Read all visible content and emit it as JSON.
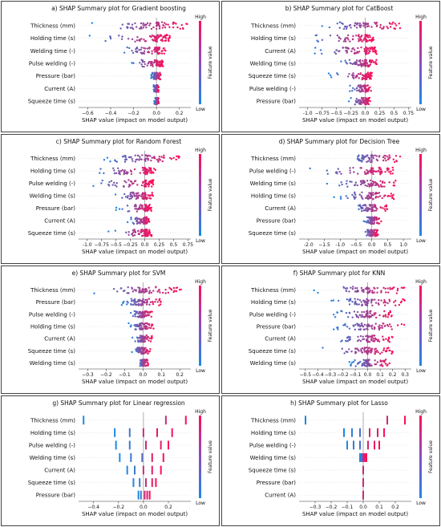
{
  "colorbar": {
    "high": "High",
    "low": "Low",
    "label": "Feature value"
  },
  "colors": {
    "low": "#1e88e5",
    "high": "#ff0d57",
    "zero_line": "#999999"
  },
  "chart_data": [
    {
      "type": "scatter",
      "subtype": "shap-beeswarm",
      "title": "a) SHAP Summary plot for Gradient boosting",
      "xlabel": "SHAP value (impact on model output)",
      "xlim": [
        -0.68,
        0.3
      ],
      "xticks": [
        -0.6,
        -0.4,
        -0.2,
        0.0,
        0.2
      ],
      "features": [
        {
          "name": "Thickness (mm)",
          "min": -0.57,
          "max": 0.27
        },
        {
          "name": "Holding time (s)",
          "min": -0.6,
          "max": 0.12
        },
        {
          "name": "Welding time (-)",
          "min": -0.33,
          "max": 0.08
        },
        {
          "name": "Pulse welding (-)",
          "min": -0.25,
          "max": 0.06
        },
        {
          "name": "Pressure (bar)",
          "min": -0.05,
          "max": 0.04
        },
        {
          "name": "Current (A)",
          "min": -0.03,
          "max": 0.02
        },
        {
          "name": "Squeeze time (s)",
          "min": -0.02,
          "max": 0.02
        }
      ]
    },
    {
      "type": "scatter",
      "subtype": "shap-beeswarm",
      "title": "b) SHAP Summary plot for CatBoost",
      "xlabel": "SHAP value (impact on model output)",
      "xlim": [
        -1.15,
        0.8
      ],
      "xticks": [
        -1.0,
        -0.75,
        -0.5,
        -0.25,
        0.0,
        0.25,
        0.5,
        0.75
      ],
      "features": [
        {
          "name": "Thickness (mm)",
          "min": -0.85,
          "max": 0.62
        },
        {
          "name": "Holding time (s)",
          "min": -1.05,
          "max": 0.15
        },
        {
          "name": "Current (A)",
          "min": -0.95,
          "max": 0.2
        },
        {
          "name": "Welding time (s)",
          "min": -0.5,
          "max": 0.2
        },
        {
          "name": "Squeeze time (s)",
          "min": -0.65,
          "max": 0.12
        },
        {
          "name": "Pulse welding (-)",
          "min": -0.3,
          "max": 0.1
        },
        {
          "name": "Pressure (bar)",
          "min": -0.3,
          "max": 0.1
        }
      ]
    },
    {
      "type": "scatter",
      "subtype": "shap-beeswarm",
      "title": "c) SHAP Summary plot for Random Forest",
      "xlabel": "SHAP value (impact on model output)",
      "xlim": [
        -1.15,
        0.8
      ],
      "xticks": [
        -1.0,
        -0.75,
        -0.5,
        -0.25,
        0.0,
        0.25,
        0.5,
        0.75
      ],
      "features": [
        {
          "name": "Thickness (mm)",
          "min": -0.75,
          "max": 0.6
        },
        {
          "name": "Holding time (s)",
          "min": -1.0,
          "max": 0.2
        },
        {
          "name": "Pulse welding (-)",
          "min": -0.95,
          "max": 0.15
        },
        {
          "name": "Welding time (s)",
          "min": -0.55,
          "max": 0.15
        },
        {
          "name": "Pressure (bar)",
          "min": -0.5,
          "max": 0.12
        },
        {
          "name": "Current (A)",
          "min": -0.3,
          "max": 0.1
        },
        {
          "name": "Squeeze time (s)",
          "min": -0.65,
          "max": 0.12
        }
      ]
    },
    {
      "type": "scatter",
      "subtype": "shap-beeswarm",
      "title": "d) SHAP Summary plot for Decision Tree",
      "xlabel": "SHAP value (impact on model output)",
      "xlim": [
        -2.3,
        1.25
      ],
      "xticks": [
        -2.0,
        -1.5,
        -1.0,
        -0.5,
        0.0,
        0.5,
        1.0
      ],
      "features": [
        {
          "name": "Thickness (mm)",
          "min": -0.85,
          "max": 0.9
        },
        {
          "name": "Pulse welding (-)",
          "min": -2.1,
          "max": 0.7
        },
        {
          "name": "Welding time (s)",
          "min": -1.5,
          "max": 0.85
        },
        {
          "name": "Holding time (s)",
          "min": -1.2,
          "max": 0.7
        },
        {
          "name": "Current (A)",
          "min": -0.7,
          "max": 0.5
        },
        {
          "name": "Pressure (bar)",
          "min": -0.3,
          "max": 0.3
        },
        {
          "name": "Squeeze time (s)",
          "min": -0.3,
          "max": 0.2
        }
      ]
    },
    {
      "type": "scatter",
      "subtype": "shap-beeswarm",
      "title": "e) SHAP Summary plot for SVM",
      "xlabel": "SHAP value (impact on model output)",
      "xlim": [
        -0.35,
        0.26
      ],
      "xticks": [
        -0.3,
        -0.2,
        -0.1,
        0.0,
        0.1,
        0.2
      ],
      "features": [
        {
          "name": "Thickness (mm)",
          "min": -0.31,
          "max": 0.21
        },
        {
          "name": "Pressure (bar)",
          "min": -0.12,
          "max": 0.1
        },
        {
          "name": "Pulse welding (-)",
          "min": -0.08,
          "max": 0.05
        },
        {
          "name": "Holding time (s)",
          "min": -0.08,
          "max": 0.06
        },
        {
          "name": "Current (A)",
          "min": -0.06,
          "max": 0.05
        },
        {
          "name": "Squeeze time (s)",
          "min": -0.06,
          "max": 0.04
        },
        {
          "name": "Welding time (s)",
          "min": -0.03,
          "max": 0.03
        }
      ]
    },
    {
      "type": "scatter",
      "subtype": "shap-beeswarm",
      "title": "f) SHAP Summary plot for KNN",
      "xlabel": "SHAP value (impact on model output)",
      "xlim": [
        -0.55,
        0.35
      ],
      "xticks": [
        -0.5,
        -0.4,
        -0.3,
        -0.2,
        -0.1,
        0.0,
        0.1,
        0.2,
        0.3
      ],
      "features": [
        {
          "name": "Thickness (mm)",
          "min": -0.45,
          "max": 0.3
        },
        {
          "name": "Holding time (s)",
          "min": -0.3,
          "max": 0.3
        },
        {
          "name": "Pulse welding (-)",
          "min": -0.3,
          "max": 0.2
        },
        {
          "name": "Pressure (bar)",
          "min": -0.3,
          "max": 0.3
        },
        {
          "name": "Current (A)",
          "min": -0.3,
          "max": 0.2
        },
        {
          "name": "Squeeze time (s)",
          "min": -0.4,
          "max": 0.2
        },
        {
          "name": "Welding time (s)",
          "min": -0.15,
          "max": 0.18
        }
      ]
    },
    {
      "type": "scatter",
      "subtype": "shap-beeswarm",
      "title": "g) SHAP Summary plot for Linear regression",
      "xlabel": "SHAP value (impact on model output)",
      "xlim": [
        -0.52,
        0.38
      ],
      "xticks": [
        -0.4,
        -0.2,
        0.0,
        0.2
      ],
      "discrete": true,
      "features": [
        {
          "name": "Thickness (mm)",
          "values": [
            -0.48,
            0.18,
            0.34
          ]
        },
        {
          "name": "Holding time (s)",
          "values": [
            -0.23,
            -0.11,
            0.0,
            0.11,
            0.23
          ]
        },
        {
          "name": "Pulse welding (-)",
          "values": [
            -0.22,
            -0.11,
            0.02,
            0.14,
            0.2
          ]
        },
        {
          "name": "Welding time (s)",
          "values": [
            -0.19,
            -0.1,
            -0.01,
            0.07,
            0.16
          ]
        },
        {
          "name": "Current (A)",
          "values": [
            -0.13,
            -0.07,
            0.0,
            0.07,
            0.14
          ]
        },
        {
          "name": "Squeeze time (s)",
          "values": [
            -0.08,
            -0.03,
            0.02,
            0.07,
            0.1
          ]
        },
        {
          "name": "Pressure (bar)",
          "values": [
            -0.04,
            -0.02,
            0.01,
            0.03,
            0.05
          ]
        }
      ]
    },
    {
      "type": "scatter",
      "subtype": "shap-beeswarm",
      "title": "h) SHAP Summary plot for Lasso",
      "xlabel": "SHAP value (impact on model output)",
      "xlim": [
        -0.4,
        0.3
      ],
      "xticks": [
        -0.3,
        -0.2,
        -0.1,
        0.0,
        0.1,
        0.2
      ],
      "discrete": true,
      "features": [
        {
          "name": "Thickness (mm)",
          "values": [
            -0.36,
            0.15,
            0.26
          ]
        },
        {
          "name": "Holding time (s)",
          "values": [
            -0.12,
            -0.07,
            -0.02,
            0.04,
            0.09,
            0.13
          ]
        },
        {
          "name": "Pulse welding (-)",
          "values": [
            -0.1,
            -0.06,
            -0.02,
            0.03,
            0.07,
            0.1
          ]
        },
        {
          "name": "Welding time (s)",
          "values": [
            -0.02,
            -0.01,
            0.0,
            0.01,
            0.02
          ]
        },
        {
          "name": "Squeeze time (s)",
          "values": [
            0.0
          ]
        },
        {
          "name": "Pressure (bar)",
          "values": [
            0.0
          ]
        },
        {
          "name": "Current (A)",
          "values": [
            0.0
          ]
        }
      ]
    }
  ]
}
